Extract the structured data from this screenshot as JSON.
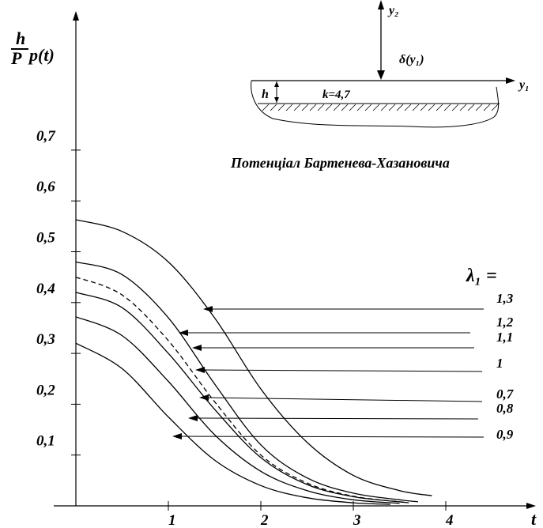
{
  "chart_data": {
    "type": "line",
    "ylabel_num": "h",
    "ylabel_den": "P",
    "ylabel_func": "p(t)",
    "xlabel": "t",
    "xlim": [
      0,
      4.5
    ],
    "ylim": [
      0,
      0.85
    ],
    "x_ticks": [
      {
        "value": 1,
        "label": "1"
      },
      {
        "value": 2,
        "label": "2"
      },
      {
        "value": 3,
        "label": "3"
      },
      {
        "value": 4,
        "label": "4"
      }
    ],
    "y_ticks": [
      {
        "value": 0.1,
        "label": "0,1"
      },
      {
        "value": 0.2,
        "label": "0,2"
      },
      {
        "value": 0.3,
        "label": "0,3"
      },
      {
        "value": 0.4,
        "label": "0,4"
      },
      {
        "value": 0.5,
        "label": "0,5"
      },
      {
        "value": 0.6,
        "label": "0,6"
      },
      {
        "value": 0.7,
        "label": "0,7"
      }
    ],
    "lambda_header": "λ₁ =",
    "series": [
      {
        "label": "1,3",
        "dashed": false,
        "x": [
          0,
          0.5,
          1.0,
          1.5,
          2.0,
          2.5,
          3.0,
          3.5,
          3.85
        ],
        "y": [
          0.563,
          0.54,
          0.48,
          0.37,
          0.23,
          0.125,
          0.06,
          0.03,
          0.02
        ],
        "arrow_label_value": "1,3"
      },
      {
        "label": "1,2",
        "dashed": false,
        "x": [
          0,
          0.5,
          1.0,
          1.5,
          2.0,
          2.5,
          3.0,
          3.5,
          3.7
        ],
        "y": [
          0.48,
          0.455,
          0.37,
          0.24,
          0.12,
          0.055,
          0.025,
          0.012,
          0.008
        ],
        "arrow_label_value": "1,2"
      },
      {
        "label": "1,1",
        "dashed": false,
        "x": [
          0,
          0.5,
          1.0,
          1.5,
          2.0,
          2.5,
          3.0,
          3.5,
          3.6
        ],
        "y": [
          0.42,
          0.39,
          0.3,
          0.19,
          0.095,
          0.042,
          0.018,
          0.008,
          0.006
        ],
        "arrow_label_value": "1,1"
      },
      {
        "label": "1",
        "dashed": true,
        "x": [
          0,
          0.5,
          1.0,
          1.5,
          2.0,
          2.5,
          3.0,
          3.5,
          3.55
        ],
        "y": [
          0.45,
          0.415,
          0.325,
          0.205,
          0.1,
          0.045,
          0.019,
          0.008,
          0.007
        ],
        "arrow_label_value": "1"
      },
      {
        "label": "0,7",
        "dashed": false,
        "x": [
          0,
          0.5,
          1.0,
          1.5,
          2.0,
          2.5,
          3.0,
          3.5
        ],
        "y": [
          0.372,
          0.335,
          0.245,
          0.14,
          0.068,
          0.03,
          0.012,
          0.005
        ],
        "arrow_label_value": "0,7"
      },
      {
        "label": "0,8",
        "dashed": false,
        "x": [
          0,
          0.5,
          1.0,
          1.5,
          2.0,
          2.5,
          3.0,
          3.4
        ],
        "y": [
          0.32,
          0.27,
          0.175,
          0.09,
          0.04,
          0.016,
          0.006,
          0.003
        ],
        "arrow_label_value": "0,8"
      }
    ],
    "inset": {
      "y2_label": "y₂",
      "y1_label": "y₁",
      "delta_label": "δ(y₁)",
      "h_label": "h",
      "k_label": "k=4,7",
      "caption": "Потенціал Бартенева-Хазановича"
    }
  }
}
